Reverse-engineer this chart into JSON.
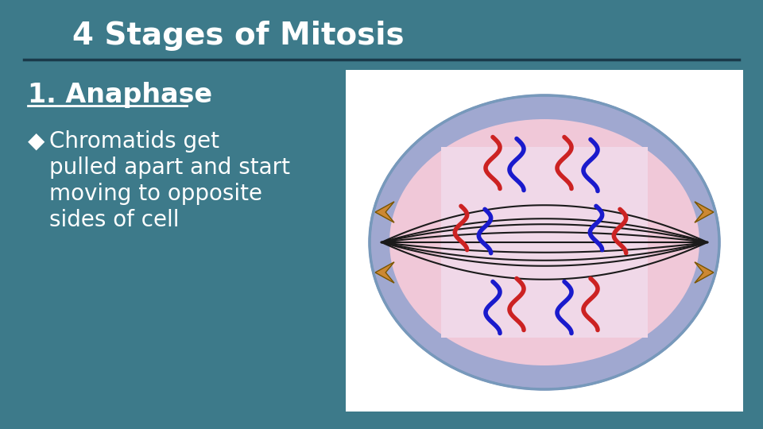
{
  "bg_color": "#3d7a8a",
  "title": "4 Stages of Mitosis",
  "title_color": "#ffffff",
  "title_fontsize": 28,
  "divider_color": "#1a3a4a",
  "heading": "1. Anaphase",
  "heading_color": "#ffffff",
  "heading_fontsize": 24,
  "bullet_symbol": "◆",
  "bullet_color": "#ffffff",
  "bullet_text": [
    "Chromatids get",
    "pulled apart and start",
    "moving to opposite",
    "sides of cell"
  ],
  "bullet_fontsize": 20,
  "cell_outer_color": "#a0a8d0",
  "cell_inner_color": "#f0c8d8",
  "inner_rect_color": "#f0d8e8",
  "spindle_color": "#1a1a1a",
  "red_chromatid_color": "#cc2222",
  "blue_chromatid_color": "#1a1acc",
  "arrow_color": "#cc8833",
  "image_bg": "#ffffff"
}
